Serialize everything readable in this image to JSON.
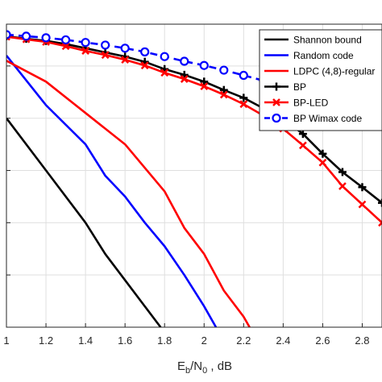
{
  "chart_data": {
    "type": "line",
    "xlabel_main": "E",
    "xlabel_sub1": "b",
    "xlabel_mid": "/N",
    "xlabel_sub2": "0",
    "xlabel_tail": " , dB",
    "xlim": [
      1.0,
      2.9
    ],
    "xticks": [
      1,
      1.2,
      1.4,
      1.6,
      1.8,
      2,
      2.2,
      2.4,
      2.6,
      2.8
    ],
    "xtick_labels": [
      "1",
      "1.2",
      "1.4",
      "1.6",
      "1.8",
      "2",
      "2.2",
      "2.4",
      "2.6",
      "2.8"
    ],
    "y_scale": "log",
    "ylim_decades": [
      -7,
      -1.2
    ],
    "grid": true,
    "legend_position": "top-right",
    "series": [
      {
        "name": "Shannon bound",
        "color": "#000000",
        "marker": "none",
        "dashed": false,
        "x": [
          1.0,
          1.2,
          1.4,
          1.5,
          1.6,
          1.7,
          1.78
        ],
        "y_log10": [
          -3.0,
          -4.0,
          -5.0,
          -5.6,
          -6.1,
          -6.6,
          -7.0
        ]
      },
      {
        "name": "Random code",
        "color": "#0000ff",
        "marker": "none",
        "dashed": false,
        "x": [
          1.0,
          1.2,
          1.4,
          1.5,
          1.6,
          1.7,
          1.8,
          1.9,
          2.0,
          2.06
        ],
        "y_log10": [
          -1.8,
          -2.75,
          -3.5,
          -4.1,
          -4.5,
          -5.0,
          -5.45,
          -6.0,
          -6.6,
          -7.0
        ]
      },
      {
        "name": "LDPC (4,8)-regular",
        "color": "#ff0000",
        "marker": "none",
        "dashed": false,
        "x": [
          1.0,
          1.2,
          1.4,
          1.6,
          1.8,
          1.9,
          2.0,
          2.1,
          2.2,
          2.23
        ],
        "y_log10": [
          -1.9,
          -2.3,
          -2.9,
          -3.5,
          -4.4,
          -5.1,
          -5.6,
          -6.3,
          -6.8,
          -7.0
        ]
      },
      {
        "name": "BP",
        "color": "#000000",
        "marker": "plus",
        "dashed": false,
        "x": [
          1.0,
          1.1,
          1.2,
          1.3,
          1.4,
          1.5,
          1.6,
          1.7,
          1.8,
          1.9,
          2.0,
          2.1,
          2.2,
          2.3,
          2.4,
          2.5,
          2.6,
          2.7,
          2.8,
          2.9
        ],
        "y_log10": [
          -1.43,
          -1.48,
          -1.52,
          -1.58,
          -1.66,
          -1.74,
          -1.82,
          -1.92,
          -2.06,
          -2.17,
          -2.3,
          -2.46,
          -2.61,
          -2.81,
          -3.02,
          -3.3,
          -3.68,
          -4.03,
          -4.32,
          -4.62
        ]
      },
      {
        "name": "BP-LED",
        "color": "#ff0000",
        "marker": "x",
        "dashed": false,
        "x": [
          1.0,
          1.1,
          1.2,
          1.3,
          1.4,
          1.5,
          1.6,
          1.7,
          1.8,
          1.9,
          2.0,
          2.1,
          2.2,
          2.3,
          2.4,
          2.5,
          2.6,
          2.7,
          2.8,
          2.9
        ],
        "y_log10": [
          -1.44,
          -1.49,
          -1.54,
          -1.62,
          -1.71,
          -1.79,
          -1.88,
          -1.99,
          -2.13,
          -2.25,
          -2.39,
          -2.55,
          -2.73,
          -2.95,
          -3.2,
          -3.52,
          -3.85,
          -4.3,
          -4.65,
          -5.0
        ]
      },
      {
        "name": "BP Wimax code",
        "color": "#0000ff",
        "marker": "circle",
        "dashed": true,
        "x": [
          1.0,
          1.1,
          1.2,
          1.3,
          1.4,
          1.5,
          1.6,
          1.7,
          1.8,
          1.9,
          2.0,
          2.1,
          2.2,
          2.3,
          2.4,
          2.5,
          2.6,
          2.7,
          2.8,
          2.9
        ],
        "y_log10": [
          -1.4,
          -1.43,
          -1.46,
          -1.5,
          -1.55,
          -1.6,
          -1.66,
          -1.73,
          -1.82,
          -1.91,
          -1.99,
          -2.08,
          -2.18,
          -2.28,
          -2.4,
          -2.53,
          -2.65,
          -2.79,
          -2.92,
          -3.05
        ]
      }
    ]
  }
}
